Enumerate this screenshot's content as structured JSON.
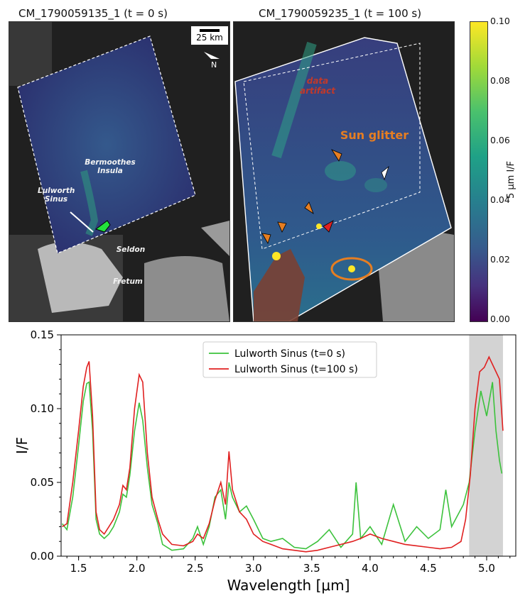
{
  "panels": {
    "left_title": "CM_1790059135_1 (t = 0 s)",
    "right_title": "CM_1790059235_1 (t = 100 s)",
    "scale_bar": "25 km",
    "north_label": "N",
    "left_labels": {
      "bermoothes": "Bermoothes\nInsula",
      "lulworth": "Lulworth\nSinus",
      "seldon": "Seldon",
      "fretum": "Fretum"
    },
    "right_labels": {
      "data_artifact": "data\nartifact",
      "sun_glitter": "Sun glitter"
    }
  },
  "colorbar": {
    "label": "5 μm I/F",
    "ticks": [
      "0.10",
      "0.08",
      "0.06",
      "0.04",
      "0.02",
      "0.00"
    ]
  },
  "colors": {
    "green_series": "#3cc23c",
    "red_series": "#e02020",
    "orange_marker": "#e67e22",
    "shade": "#d3d3d3"
  },
  "chart_data": {
    "type": "line",
    "title": "",
    "xlabel": "Wavelength [μm]",
    "ylabel": "I/F",
    "xlim": [
      1.35,
      5.25
    ],
    "ylim": [
      0.0,
      0.15
    ],
    "xticks": [
      "1.5",
      "2.0",
      "2.5",
      "3.0",
      "3.5",
      "4.0",
      "4.5",
      "5.0"
    ],
    "yticks": [
      "0.00",
      "0.05",
      "0.10",
      "0.15"
    ],
    "shaded_region": [
      4.85,
      5.14
    ],
    "legend_position": "top-center",
    "series": [
      {
        "name": "Lulworth Sinus (t=0 s)",
        "color": "#3cc23c",
        "points": [
          [
            1.36,
            0.022
          ],
          [
            1.4,
            0.018
          ],
          [
            1.45,
            0.04
          ],
          [
            1.5,
            0.075
          ],
          [
            1.54,
            0.105
          ],
          [
            1.57,
            0.117
          ],
          [
            1.59,
            0.118
          ],
          [
            1.62,
            0.085
          ],
          [
            1.65,
            0.025
          ],
          [
            1.68,
            0.015
          ],
          [
            1.72,
            0.012
          ],
          [
            1.76,
            0.015
          ],
          [
            1.8,
            0.02
          ],
          [
            1.85,
            0.03
          ],
          [
            1.88,
            0.042
          ],
          [
            1.91,
            0.04
          ],
          [
            1.94,
            0.055
          ],
          [
            1.98,
            0.085
          ],
          [
            2.02,
            0.104
          ],
          [
            2.05,
            0.092
          ],
          [
            2.09,
            0.06
          ],
          [
            2.13,
            0.035
          ],
          [
            2.18,
            0.022
          ],
          [
            2.22,
            0.008
          ],
          [
            2.3,
            0.004
          ],
          [
            2.4,
            0.005
          ],
          [
            2.48,
            0.012
          ],
          [
            2.52,
            0.02
          ],
          [
            2.57,
            0.008
          ],
          [
            2.62,
            0.02
          ],
          [
            2.67,
            0.04
          ],
          [
            2.72,
            0.045
          ],
          [
            2.76,
            0.025
          ],
          [
            2.79,
            0.05
          ],
          [
            2.82,
            0.04
          ],
          [
            2.88,
            0.03
          ],
          [
            2.94,
            0.034
          ],
          [
            3.0,
            0.025
          ],
          [
            3.08,
            0.012
          ],
          [
            3.15,
            0.01
          ],
          [
            3.25,
            0.012
          ],
          [
            3.35,
            0.006
          ],
          [
            3.45,
            0.005
          ],
          [
            3.55,
            0.01
          ],
          [
            3.65,
            0.018
          ],
          [
            3.75,
            0.006
          ],
          [
            3.85,
            0.015
          ],
          [
            3.88,
            0.05
          ],
          [
            3.92,
            0.012
          ],
          [
            4.0,
            0.02
          ],
          [
            4.1,
            0.008
          ],
          [
            4.2,
            0.035
          ],
          [
            4.3,
            0.01
          ],
          [
            4.4,
            0.02
          ],
          [
            4.5,
            0.012
          ],
          [
            4.6,
            0.018
          ],
          [
            4.65,
            0.045
          ],
          [
            4.7,
            0.02
          ],
          [
            4.8,
            0.035
          ],
          [
            4.85,
            0.05
          ],
          [
            4.9,
            0.085
          ],
          [
            4.95,
            0.112
          ],
          [
            5.0,
            0.095
          ],
          [
            5.05,
            0.118
          ],
          [
            5.08,
            0.085
          ],
          [
            5.11,
            0.065
          ],
          [
            5.13,
            0.056
          ]
        ]
      },
      {
        "name": "Lulworth Sinus (t=100 s)",
        "color": "#e02020",
        "points": [
          [
            1.36,
            0.02
          ],
          [
            1.4,
            0.022
          ],
          [
            1.45,
            0.05
          ],
          [
            1.5,
            0.085
          ],
          [
            1.54,
            0.115
          ],
          [
            1.57,
            0.128
          ],
          [
            1.59,
            0.132
          ],
          [
            1.62,
            0.095
          ],
          [
            1.65,
            0.03
          ],
          [
            1.68,
            0.018
          ],
          [
            1.72,
            0.015
          ],
          [
            1.76,
            0.02
          ],
          [
            1.8,
            0.025
          ],
          [
            1.85,
            0.035
          ],
          [
            1.88,
            0.048
          ],
          [
            1.91,
            0.045
          ],
          [
            1.94,
            0.06
          ],
          [
            1.98,
            0.1
          ],
          [
            2.02,
            0.123
          ],
          [
            2.05,
            0.118
          ],
          [
            2.09,
            0.07
          ],
          [
            2.13,
            0.04
          ],
          [
            2.18,
            0.025
          ],
          [
            2.22,
            0.015
          ],
          [
            2.3,
            0.008
          ],
          [
            2.4,
            0.007
          ],
          [
            2.48,
            0.01
          ],
          [
            2.52,
            0.015
          ],
          [
            2.57,
            0.012
          ],
          [
            2.62,
            0.022
          ],
          [
            2.67,
            0.038
          ],
          [
            2.72,
            0.05
          ],
          [
            2.76,
            0.035
          ],
          [
            2.79,
            0.071
          ],
          [
            2.82,
            0.045
          ],
          [
            2.88,
            0.03
          ],
          [
            2.94,
            0.025
          ],
          [
            3.0,
            0.015
          ],
          [
            3.08,
            0.01
          ],
          [
            3.15,
            0.008
          ],
          [
            3.25,
            0.005
          ],
          [
            3.35,
            0.004
          ],
          [
            3.45,
            0.003
          ],
          [
            3.55,
            0.004
          ],
          [
            3.65,
            0.006
          ],
          [
            3.75,
            0.008
          ],
          [
            3.85,
            0.01
          ],
          [
            3.92,
            0.012
          ],
          [
            4.0,
            0.015
          ],
          [
            4.1,
            0.012
          ],
          [
            4.2,
            0.01
          ],
          [
            4.3,
            0.008
          ],
          [
            4.4,
            0.007
          ],
          [
            4.5,
            0.006
          ],
          [
            4.6,
            0.005
          ],
          [
            4.7,
            0.006
          ],
          [
            4.78,
            0.01
          ],
          [
            4.82,
            0.025
          ],
          [
            4.86,
            0.055
          ],
          [
            4.9,
            0.1
          ],
          [
            4.94,
            0.125
          ],
          [
            4.98,
            0.128
          ],
          [
            5.02,
            0.135
          ],
          [
            5.05,
            0.13
          ],
          [
            5.08,
            0.125
          ],
          [
            5.11,
            0.12
          ],
          [
            5.14,
            0.085
          ]
        ]
      }
    ]
  }
}
